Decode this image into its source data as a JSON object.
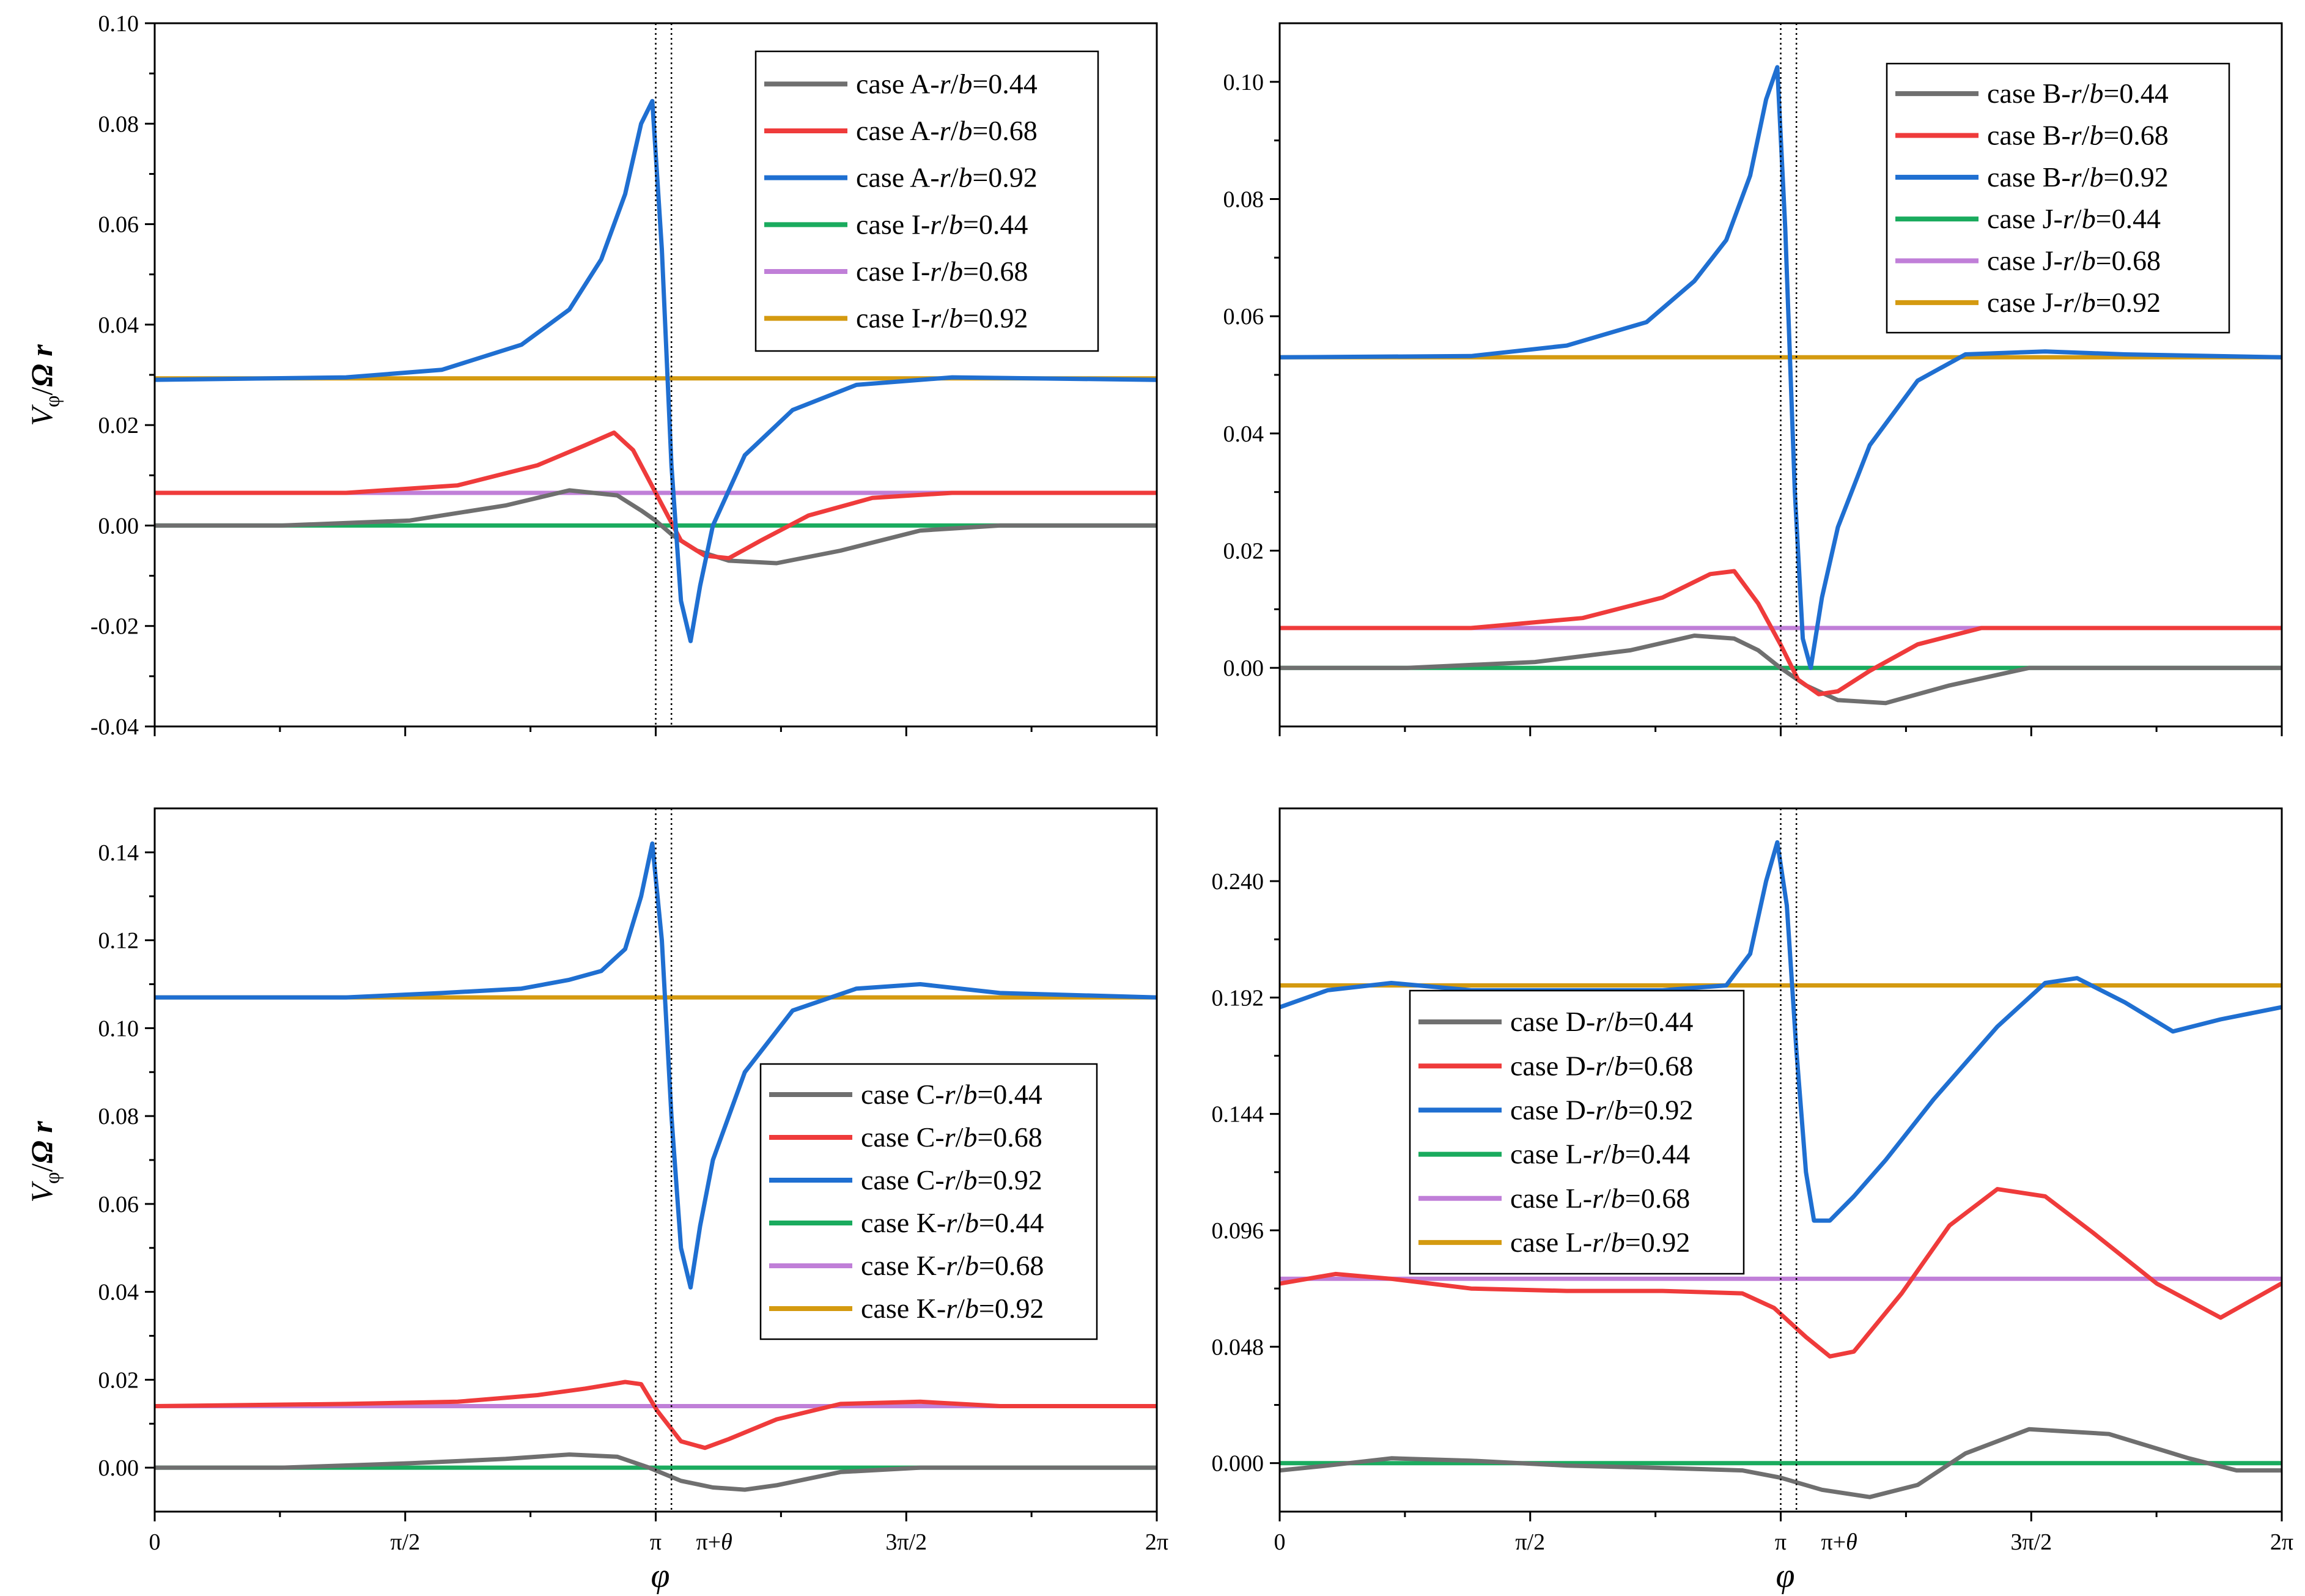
{
  "figure": {
    "xlabel": "φ",
    "ylabel": "V",
    "ylabel_sub": "φ",
    "ylabel_rest": "Ω r"
  },
  "chart_data": [
    {
      "type": "line",
      "panel": "top-left",
      "ylim": [
        -0.04,
        0.1
      ],
      "yticks": [
        -0.04,
        -0.02,
        0.0,
        0.02,
        0.04,
        0.06,
        0.08,
        0.1
      ],
      "yticklabels": [
        "-0.04",
        "-0.02",
        "0.00",
        "0.02",
        "0.04",
        "0.06",
        "0.08",
        "0.10"
      ],
      "show_xticklabels": false,
      "legend_position": "top-right",
      "series": [
        {
          "name": "case A-r/b=0.44",
          "prefix": "case A-",
          "color": "#6f6f6f",
          "x": [
            0,
            0.8,
            1.6,
            2.2,
            2.6,
            2.9,
            3.05,
            3.14,
            3.25,
            3.4,
            3.6,
            3.9,
            4.3,
            4.8,
            5.3,
            6.28
          ],
          "y": [
            0,
            0,
            0.001,
            0.004,
            0.007,
            0.006,
            0.003,
            0.001,
            -0.002,
            -0.005,
            -0.007,
            -0.0075,
            -0.005,
            -0.001,
            0,
            0
          ]
        },
        {
          "name": "case A-r/b=0.68",
          "prefix": "case A-",
          "color": "#ef3b3b",
          "x": [
            0,
            1.2,
            1.9,
            2.4,
            2.7,
            2.88,
            3.0,
            3.1,
            3.2,
            3.3,
            3.45,
            3.6,
            3.8,
            4.1,
            4.5,
            5.0,
            6.28
          ],
          "y": [
            0.0065,
            0.0065,
            0.008,
            0.012,
            0.016,
            0.0185,
            0.015,
            0.009,
            0.003,
            -0.003,
            -0.006,
            -0.0065,
            -0.003,
            0.002,
            0.0055,
            0.0065,
            0.0065
          ]
        },
        {
          "name": "case A-r/b=0.92",
          "prefix": "case A-",
          "color": "#1f6fd1",
          "x": [
            0,
            1.2,
            1.8,
            2.3,
            2.6,
            2.8,
            2.95,
            3.05,
            3.12,
            3.18,
            3.24,
            3.3,
            3.36,
            3.42,
            3.5,
            3.7,
            4.0,
            4.4,
            5.0,
            6.28
          ],
          "y": [
            0.029,
            0.0295,
            0.031,
            0.036,
            0.043,
            0.053,
            0.066,
            0.08,
            0.0845,
            0.055,
            0.012,
            -0.015,
            -0.023,
            -0.012,
            0.0,
            0.014,
            0.023,
            0.028,
            0.0295,
            0.029
          ]
        },
        {
          "name": "case I-r/b=0.44",
          "prefix": "case I-",
          "color": "#1aab5e",
          "x": [
            0,
            6.28
          ],
          "y": [
            0.0,
            0.0
          ]
        },
        {
          "name": "case I-r/b=0.68",
          "prefix": "case I-",
          "color": "#c07fd8",
          "x": [
            0,
            6.28
          ],
          "y": [
            0.0065,
            0.0065
          ]
        },
        {
          "name": "case I-r/b=0.92",
          "prefix": "case I-",
          "color": "#d49a10",
          "x": [
            0,
            6.28
          ],
          "y": [
            0.0293,
            0.0293
          ]
        }
      ],
      "legend_labels": [
        {
          "prefix": "case A-",
          "value": "=0.44"
        },
        {
          "prefix": "case A-",
          "value": "=0.68"
        },
        {
          "prefix": "case A-",
          "value": "=0.92"
        },
        {
          "prefix": "case I-",
          "value": "=0.44"
        },
        {
          "prefix": "case I-",
          "value": "=0.68"
        },
        {
          "prefix": "case I-",
          "value": "=0.92"
        }
      ]
    },
    {
      "type": "line",
      "panel": "top-right",
      "ylim": [
        -0.01,
        0.11
      ],
      "yticks": [
        0.0,
        0.02,
        0.04,
        0.06,
        0.08,
        0.1
      ],
      "yticklabels": [
        "0.00",
        "0.02",
        "0.04",
        "0.06",
        "0.08",
        "0.10"
      ],
      "show_xticklabels": false,
      "legend_position": "top-right",
      "series": [
        {
          "name": "case B-r/b=0.44",
          "prefix": "case B-",
          "color": "#6f6f6f",
          "x": [
            0,
            0.8,
            1.6,
            2.2,
            2.6,
            2.85,
            3.0,
            3.14,
            3.3,
            3.5,
            3.8,
            4.2,
            4.7,
            5.3,
            6.28
          ],
          "y": [
            0,
            0,
            0.001,
            0.003,
            0.0055,
            0.005,
            0.003,
            0.0,
            -0.003,
            -0.0055,
            -0.006,
            -0.003,
            0.0,
            0.0,
            0
          ]
        },
        {
          "name": "case B-r/b=0.68",
          "prefix": "case B-",
          "color": "#ef3b3b",
          "x": [
            0,
            1.2,
            1.9,
            2.4,
            2.7,
            2.85,
            3.0,
            3.14,
            3.25,
            3.38,
            3.5,
            3.7,
            4.0,
            4.4,
            5.0,
            6.28
          ],
          "y": [
            0.0068,
            0.0068,
            0.0085,
            0.012,
            0.016,
            0.0165,
            0.011,
            0.004,
            -0.002,
            -0.0045,
            -0.004,
            -0.0005,
            0.004,
            0.0068,
            0.0068,
            0.0068
          ]
        },
        {
          "name": "case B-r/b=0.92",
          "prefix": "case B-",
          "color": "#1f6fd1",
          "x": [
            0,
            1.2,
            1.8,
            2.3,
            2.6,
            2.8,
            2.95,
            3.05,
            3.12,
            3.17,
            3.23,
            3.28,
            3.33,
            3.4,
            3.5,
            3.7,
            4.0,
            4.3,
            4.8,
            5.3,
            6.28
          ],
          "y": [
            0.053,
            0.0532,
            0.055,
            0.059,
            0.066,
            0.073,
            0.084,
            0.097,
            0.1025,
            0.075,
            0.03,
            0.005,
            0.0,
            0.012,
            0.024,
            0.038,
            0.049,
            0.0535,
            0.054,
            0.0535,
            0.053
          ]
        },
        {
          "name": "case J-r/b=0.44",
          "prefix": "case J-",
          "color": "#1aab5e",
          "x": [
            0,
            6.28
          ],
          "y": [
            0.0,
            0.0
          ]
        },
        {
          "name": "case J-r/b=0.68",
          "prefix": "case J-",
          "color": "#c07fd8",
          "x": [
            0,
            6.28
          ],
          "y": [
            0.0068,
            0.0068
          ]
        },
        {
          "name": "case J-r/b=0.92",
          "prefix": "case J-",
          "color": "#d49a10",
          "x": [
            0,
            6.28
          ],
          "y": [
            0.053,
            0.053
          ]
        }
      ],
      "legend_labels": [
        {
          "prefix": "case B-",
          "value": "=0.44"
        },
        {
          "prefix": "case B-",
          "value": "=0.68"
        },
        {
          "prefix": "case B-",
          "value": "=0.92"
        },
        {
          "prefix": "case J-",
          "value": "=0.44"
        },
        {
          "prefix": "case J-",
          "value": "=0.68"
        },
        {
          "prefix": "case J-",
          "value": "=0.92"
        }
      ]
    },
    {
      "type": "line",
      "panel": "bottom-left",
      "ylim": [
        -0.01,
        0.15
      ],
      "yticks": [
        0.0,
        0.02,
        0.04,
        0.06,
        0.08,
        0.1,
        0.12,
        0.14
      ],
      "yticklabels": [
        "0.00",
        "0.02",
        "0.04",
        "0.06",
        "0.08",
        "0.10",
        "0.12",
        "0.14"
      ],
      "show_xticklabels": true,
      "legend_position": "lower-right",
      "series": [
        {
          "name": "case C-r/b=0.44",
          "prefix": "case C-",
          "color": "#6f6f6f",
          "x": [
            0,
            0.8,
            1.6,
            2.2,
            2.6,
            2.9,
            3.1,
            3.3,
            3.5,
            3.7,
            3.9,
            4.3,
            4.8,
            5.3,
            6.28
          ],
          "y": [
            0,
            0,
            0.001,
            0.002,
            0.003,
            0.0025,
            0.0,
            -0.003,
            -0.0045,
            -0.005,
            -0.004,
            -0.001,
            0.0,
            0.0,
            0
          ]
        },
        {
          "name": "case C-r/b=0.68",
          "prefix": "case C-",
          "color": "#ef3b3b",
          "x": [
            0,
            1.2,
            1.9,
            2.4,
            2.7,
            2.95,
            3.05,
            3.15,
            3.3,
            3.45,
            3.6,
            3.9,
            4.3,
            4.8,
            5.3,
            6.28
          ],
          "y": [
            0.014,
            0.0145,
            0.015,
            0.0165,
            0.018,
            0.0195,
            0.019,
            0.013,
            0.006,
            0.0045,
            0.0065,
            0.011,
            0.0145,
            0.015,
            0.014,
            0.014
          ]
        },
        {
          "name": "case C-r/b=0.92",
          "prefix": "case C-",
          "color": "#1f6fd1",
          "x": [
            0,
            1.2,
            1.8,
            2.3,
            2.6,
            2.8,
            2.95,
            3.05,
            3.12,
            3.18,
            3.24,
            3.3,
            3.36,
            3.42,
            3.5,
            3.7,
            4.0,
            4.4,
            4.8,
            5.3,
            6.28
          ],
          "y": [
            0.107,
            0.107,
            0.108,
            0.109,
            0.111,
            0.113,
            0.118,
            0.13,
            0.142,
            0.12,
            0.08,
            0.05,
            0.041,
            0.055,
            0.07,
            0.09,
            0.104,
            0.109,
            0.11,
            0.108,
            0.107
          ]
        },
        {
          "name": "case K-r/b=0.44",
          "prefix": "case K-",
          "color": "#1aab5e",
          "x": [
            0,
            6.28
          ],
          "y": [
            0.0,
            0.0
          ]
        },
        {
          "name": "case K-r/b=0.68",
          "prefix": "case K-",
          "color": "#c07fd8",
          "x": [
            0,
            6.28
          ],
          "y": [
            0.014,
            0.014
          ]
        },
        {
          "name": "case K-r/b=0.92",
          "prefix": "case K-",
          "color": "#d49a10",
          "x": [
            0,
            6.28
          ],
          "y": [
            0.107,
            0.107
          ]
        }
      ],
      "legend_labels": [
        {
          "prefix": "case C-",
          "value": "=0.44"
        },
        {
          "prefix": "case C-",
          "value": "=0.68"
        },
        {
          "prefix": "case C-",
          "value": "=0.92"
        },
        {
          "prefix": "case K-",
          "value": "=0.44"
        },
        {
          "prefix": "case K-",
          "value": "=0.68"
        },
        {
          "prefix": "case K-",
          "value": "=0.92"
        }
      ]
    },
    {
      "type": "line",
      "panel": "bottom-right",
      "ylim": [
        -0.02,
        0.27
      ],
      "yticks": [
        0.0,
        0.048,
        0.096,
        0.144,
        0.192,
        0.24
      ],
      "yticklabels": [
        "0.000",
        "0.048",
        "0.096",
        "0.144",
        "0.192",
        "0.240"
      ],
      "show_xticklabels": true,
      "legend_position": "mid-left",
      "series": [
        {
          "name": "case D-r/b=0.44",
          "prefix": "case D-",
          "color": "#6f6f6f",
          "x": [
            0,
            0.3,
            0.7,
            1.2,
            1.8,
            2.4,
            2.9,
            3.14,
            3.4,
            3.7,
            4.0,
            4.3,
            4.7,
            5.2,
            5.7,
            6.0,
            6.28
          ],
          "y": [
            -0.003,
            -0.001,
            0.002,
            0.001,
            -0.001,
            -0.002,
            -0.003,
            -0.006,
            -0.011,
            -0.014,
            -0.009,
            0.004,
            0.014,
            0.012,
            0.002,
            -0.003,
            -0.003
          ]
        },
        {
          "name": "case D-r/b=0.68",
          "prefix": "case D-",
          "color": "#ef3b3b",
          "x": [
            0,
            0.35,
            0.7,
            1.2,
            1.8,
            2.4,
            2.9,
            3.1,
            3.3,
            3.45,
            3.6,
            3.9,
            4.2,
            4.5,
            4.8,
            5.1,
            5.5,
            5.9,
            6.28
          ],
          "y": [
            0.074,
            0.078,
            0.076,
            0.072,
            0.071,
            0.071,
            0.07,
            0.064,
            0.052,
            0.044,
            0.046,
            0.07,
            0.098,
            0.113,
            0.11,
            0.095,
            0.074,
            0.06,
            0.074
          ]
        },
        {
          "name": "case D-r/b=0.92",
          "prefix": "case D-",
          "color": "#1f6fd1",
          "x": [
            0,
            0.3,
            0.7,
            1.2,
            1.8,
            2.4,
            2.8,
            2.95,
            3.05,
            3.12,
            3.18,
            3.24,
            3.3,
            3.35,
            3.45,
            3.6,
            3.8,
            4.1,
            4.5,
            4.8,
            5.0,
            5.3,
            5.6,
            5.9,
            6.28
          ],
          "y": [
            0.188,
            0.195,
            0.198,
            0.195,
            0.195,
            0.195,
            0.197,
            0.21,
            0.24,
            0.256,
            0.23,
            0.17,
            0.12,
            0.1,
            0.1,
            0.11,
            0.125,
            0.15,
            0.18,
            0.198,
            0.2,
            0.19,
            0.178,
            0.183,
            0.188
          ]
        },
        {
          "name": "case L-r/b=0.44",
          "prefix": "case L-",
          "color": "#1aab5e",
          "x": [
            0,
            6.28
          ],
          "y": [
            0.0,
            0.0
          ]
        },
        {
          "name": "case L-r/b=0.68",
          "prefix": "case L-",
          "color": "#c07fd8",
          "x": [
            0,
            6.28
          ],
          "y": [
            0.076,
            0.076
          ]
        },
        {
          "name": "case L-r/b=0.92",
          "prefix": "case L-",
          "color": "#d49a10",
          "x": [
            0,
            6.28
          ],
          "y": [
            0.197,
            0.197
          ]
        }
      ],
      "legend_labels": [
        {
          "prefix": "case D-",
          "value": "=0.44"
        },
        {
          "prefix": "case D-",
          "value": "=0.68"
        },
        {
          "prefix": "case D-",
          "value": "=0.92"
        },
        {
          "prefix": "case L-",
          "value": "=0.44"
        },
        {
          "prefix": "case L-",
          "value": "=0.68"
        },
        {
          "prefix": "case L-",
          "value": "=0.92"
        }
      ]
    }
  ],
  "xaxis": {
    "xlim": [
      0,
      6.2832
    ],
    "ticks": [
      0,
      1.5708,
      3.1416,
      4.7124,
      6.2832
    ],
    "ticklabels": [
      "0",
      "π/2",
      "π",
      "3π/2",
      "2π"
    ],
    "theta_label_prefix": "π+",
    "theta_label_var": "θ",
    "vlines": [
      3.1416,
      3.24
    ]
  },
  "legend_var_r": "r",
  "legend_var_b": "b"
}
